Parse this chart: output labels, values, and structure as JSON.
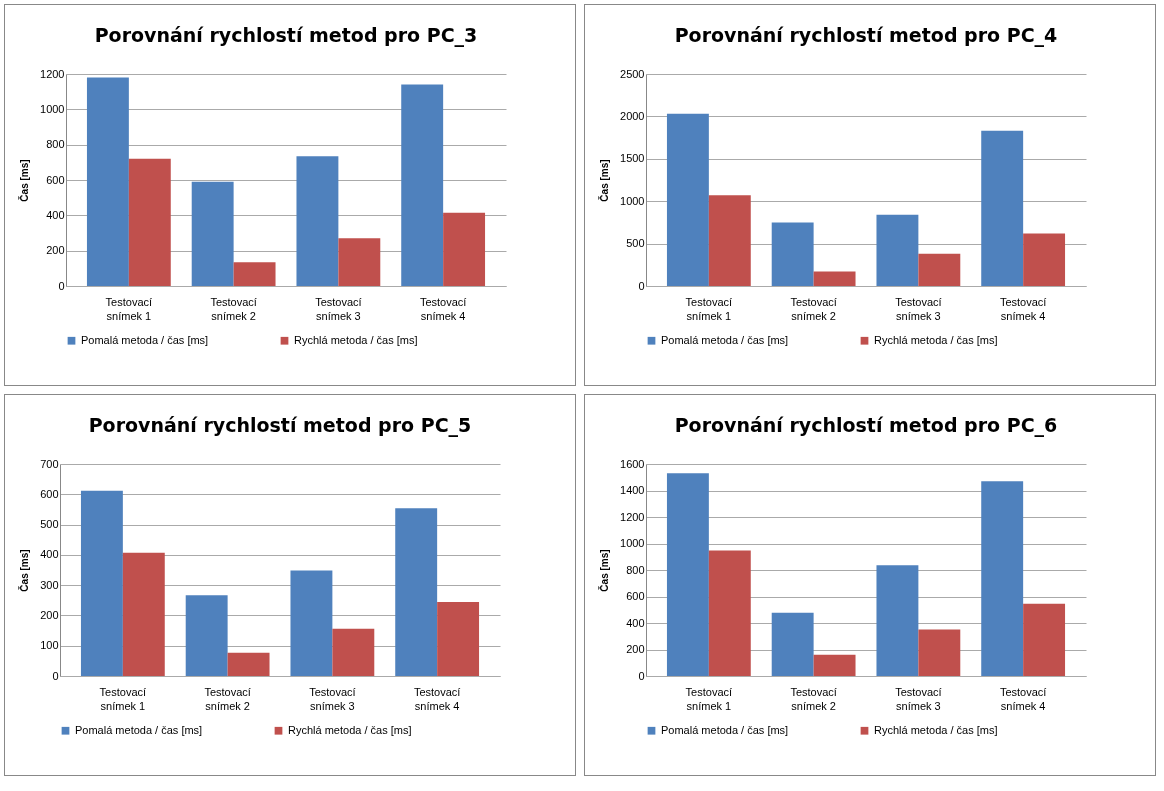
{
  "chart_data": [
    {
      "type": "bar",
      "title": "Porovnání rychlostí metod pro PC_3",
      "ylabel": "Čas [ms]",
      "categories": [
        "Testovací snímek 1",
        "Testovací snímek 2",
        "Testovací snímek 3",
        "Testovací snímek 4"
      ],
      "series": [
        {
          "name": "Pomalá metoda / čas [ms]",
          "color": "#4f81bd",
          "values": [
            1180,
            590,
            735,
            1140
          ]
        },
        {
          "name": "Rychlá metoda / čas [ms]",
          "color": "#c0504d",
          "values": [
            720,
            135,
            270,
            415
          ]
        }
      ],
      "ylim": [
        0,
        1200
      ],
      "yticks": [
        0,
        200,
        400,
        600,
        800,
        1000,
        1200
      ],
      "grid": "y",
      "legend": "bottom"
    },
    {
      "type": "bar",
      "title": "Porovnání rychlostí metod pro PC_4",
      "ylabel": "Čas [ms]",
      "categories": [
        "Testovací snímek 1",
        "Testovací snímek 2",
        "Testovací snímek 3",
        "Testovací snímek 4"
      ],
      "series": [
        {
          "name": "Pomalá metoda / čas [ms]",
          "color": "#4f81bd",
          "values": [
            2030,
            750,
            840,
            1830
          ]
        },
        {
          "name": "Rychlá metoda / čas [ms]",
          "color": "#c0504d",
          "values": [
            1070,
            170,
            380,
            620
          ]
        }
      ],
      "ylim": [
        0,
        2500
      ],
      "yticks": [
        0,
        500,
        1000,
        1500,
        2000,
        2500
      ],
      "grid": "y",
      "legend": "bottom"
    },
    {
      "type": "bar",
      "title": "Porovnání rychlostí metod pro PC_5",
      "ylabel": "Čas [ms]",
      "categories": [
        "Testovací snímek 1",
        "Testovací snímek 2",
        "Testovací snímek 3",
        "Testovací snímek 4"
      ],
      "series": [
        {
          "name": "Pomalá metoda / čas [ms]",
          "color": "#4f81bd",
          "values": [
            612,
            267,
            348,
            554
          ]
        },
        {
          "name": "Rychlá metoda / čas [ms]",
          "color": "#c0504d",
          "values": [
            407,
            77,
            156,
            244
          ]
        }
      ],
      "ylim": [
        0,
        700
      ],
      "yticks": [
        0,
        100,
        200,
        300,
        400,
        500,
        600,
        700
      ],
      "grid": "y",
      "legend": "bottom"
    },
    {
      "type": "bar",
      "title": "Porovnání rychlostí metod pro PC_6",
      "ylabel": "Čas [ms]",
      "categories": [
        "Testovací snímek 1",
        "Testovací snímek 2",
        "Testovací snímek 3",
        "Testovací snímek 4"
      ],
      "series": [
        {
          "name": "Pomalá metoda / čas [ms]",
          "color": "#4f81bd",
          "values": [
            1530,
            477,
            836,
            1470
          ]
        },
        {
          "name": "Rychlá metoda / čas [ms]",
          "color": "#c0504d",
          "values": [
            948,
            160,
            351,
            546
          ]
        }
      ],
      "ylim": [
        0,
        1600
      ],
      "yticks": [
        0,
        200,
        400,
        600,
        800,
        1000,
        1200,
        1400,
        1600
      ],
      "grid": "y",
      "legend": "bottom"
    }
  ]
}
